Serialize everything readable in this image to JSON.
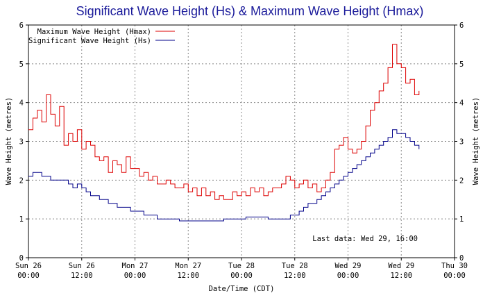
{
  "chart_data": {
    "type": "line",
    "title": "Significant Wave Height (Hs) & Maximum Wave Height (Hmax)",
    "xlabel": "Date/Time (CDT)",
    "ylabel_left": "Wave Height (metres)",
    "ylabel_right": "Wave Height (metres)",
    "ylim": [
      0,
      6
    ],
    "yticks": [
      "0",
      "1",
      "2",
      "3",
      "4",
      "5",
      "6"
    ],
    "x_unit": "hours since Sun 26 00:00",
    "xlim": [
      0,
      96
    ],
    "xticks": [
      {
        "line1": "Sun 26",
        "line2": "00:00"
      },
      {
        "line1": "Sun 26",
        "line2": "12:00"
      },
      {
        "line1": "Mon 27",
        "line2": "00:00"
      },
      {
        "line1": "Mon 27",
        "line2": "12:00"
      },
      {
        "line1": "Tue 28",
        "line2": "00:00"
      },
      {
        "line1": "Tue 28",
        "line2": "12:00"
      },
      {
        "line1": "Wed 29",
        "line2": "00:00"
      },
      {
        "line1": "Wed 29",
        "line2": "12:00"
      },
      {
        "line1": "Thu 30",
        "line2": "00:00"
      }
    ],
    "grid": true,
    "legend_position": "top-left",
    "annotation": "Last data: Wed 29, 16:00",
    "series": [
      {
        "name": "Maximum Wave Height (Hmax)",
        "color": "#dd0000",
        "x": [
          0,
          1,
          2,
          3,
          4,
          5,
          6,
          7,
          8,
          9,
          10,
          11,
          12,
          13,
          14,
          15,
          16,
          17,
          18,
          19,
          20,
          21,
          22,
          23,
          24,
          25,
          26,
          27,
          28,
          29,
          30,
          31,
          32,
          33,
          34,
          35,
          36,
          37,
          38,
          39,
          40,
          41,
          42,
          43,
          44,
          45,
          46,
          47,
          48,
          49,
          50,
          51,
          52,
          53,
          54,
          55,
          56,
          57,
          58,
          59,
          60,
          61,
          62,
          63,
          64,
          65,
          66,
          67,
          68,
          69,
          70,
          71,
          72,
          73,
          74,
          75,
          76,
          77,
          78,
          79,
          80,
          81,
          82,
          83,
          84,
          85,
          86,
          87,
          88
        ],
        "values": [
          3.3,
          3.6,
          3.8,
          3.5,
          4.2,
          3.7,
          3.4,
          3.9,
          2.9,
          3.2,
          3.0,
          3.3,
          2.8,
          3.0,
          2.9,
          2.6,
          2.5,
          2.6,
          2.2,
          2.5,
          2.4,
          2.2,
          2.6,
          2.3,
          2.3,
          2.1,
          2.2,
          2.0,
          2.1,
          1.9,
          1.9,
          2.0,
          1.9,
          1.8,
          1.8,
          1.9,
          1.7,
          1.8,
          1.6,
          1.8,
          1.6,
          1.7,
          1.5,
          1.6,
          1.5,
          1.5,
          1.7,
          1.6,
          1.7,
          1.6,
          1.8,
          1.7,
          1.8,
          1.6,
          1.7,
          1.8,
          1.8,
          1.9,
          2.1,
          2.0,
          1.8,
          1.9,
          2.0,
          1.8,
          1.9,
          1.7,
          1.8,
          2.0,
          2.2,
          2.8,
          2.9,
          3.1,
          2.8,
          2.7,
          2.8,
          3.0,
          3.4,
          3.8,
          4.0,
          4.3,
          4.5,
          4.9,
          5.5,
          5.0,
          4.9,
          4.5,
          4.6,
          4.2,
          4.3
        ],
        "line_x_end": 88
      },
      {
        "name": "Significant Wave Height (Hs)",
        "color": "#000088",
        "x": [
          0,
          1,
          2,
          3,
          4,
          5,
          6,
          7,
          8,
          9,
          10,
          11,
          12,
          13,
          14,
          15,
          16,
          17,
          18,
          19,
          20,
          21,
          22,
          23,
          24,
          25,
          26,
          27,
          28,
          29,
          30,
          31,
          32,
          33,
          34,
          35,
          36,
          37,
          38,
          39,
          40,
          41,
          42,
          43,
          44,
          45,
          46,
          47,
          48,
          49,
          50,
          51,
          52,
          53,
          54,
          55,
          56,
          57,
          58,
          59,
          60,
          61,
          62,
          63,
          64,
          65,
          66,
          67,
          68,
          69,
          70,
          71,
          72,
          73,
          74,
          75,
          76,
          77,
          78,
          79,
          80,
          81,
          82,
          83,
          84,
          85,
          86,
          87,
          88
        ],
        "values": [
          2.1,
          2.2,
          2.2,
          2.1,
          2.1,
          2.0,
          2.0,
          2.0,
          2.0,
          1.9,
          1.8,
          1.9,
          1.8,
          1.7,
          1.6,
          1.6,
          1.5,
          1.5,
          1.4,
          1.4,
          1.3,
          1.3,
          1.3,
          1.2,
          1.2,
          1.2,
          1.1,
          1.1,
          1.1,
          1.0,
          1.0,
          1.0,
          1.0,
          1.0,
          0.95,
          0.95,
          0.95,
          0.95,
          0.95,
          0.95,
          0.95,
          0.95,
          0.95,
          0.95,
          1.0,
          1.0,
          1.0,
          1.0,
          1.0,
          1.05,
          1.05,
          1.05,
          1.05,
          1.05,
          1.0,
          1.0,
          1.0,
          1.0,
          1.0,
          1.1,
          1.1,
          1.2,
          1.3,
          1.4,
          1.4,
          1.5,
          1.6,
          1.7,
          1.8,
          1.9,
          2.0,
          2.1,
          2.2,
          2.3,
          2.4,
          2.5,
          2.6,
          2.7,
          2.8,
          2.9,
          3.0,
          3.1,
          3.3,
          3.2,
          3.2,
          3.1,
          3.0,
          2.9,
          2.8
        ],
        "line_x_end": 88
      }
    ]
  }
}
